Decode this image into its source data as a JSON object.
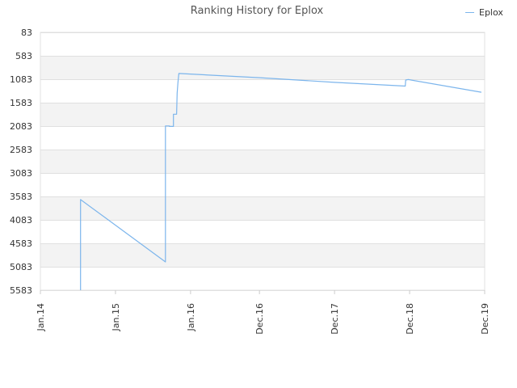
{
  "chart_data": {
    "type": "line",
    "title": "Ranking History for Eplox",
    "xlabel": "",
    "ylabel": "",
    "y_inverted": true,
    "ylim": [
      5583,
      83
    ],
    "yticks": [
      83,
      583,
      1083,
      1583,
      2083,
      2583,
      3083,
      3583,
      4083,
      4583,
      5083,
      5583
    ],
    "xlim": [
      "2014-01",
      "2019-12"
    ],
    "xticks": [
      {
        "label": "Jan.14",
        "date": "2014-01"
      },
      {
        "label": "Jan.15",
        "date": "2015-01"
      },
      {
        "label": "Jan.16",
        "date": "2016-01"
      },
      {
        "label": "Dec.16",
        "date": "2016-12"
      },
      {
        "label": "Dec.17",
        "date": "2017-12"
      },
      {
        "label": "Dec.18",
        "date": "2018-12"
      },
      {
        "label": "Dec.19",
        "date": "2019-12"
      }
    ],
    "grid": true,
    "legend": "top-right",
    "series": [
      {
        "name": "Eplox",
        "color": "#7cb5ec",
        "points": [
          {
            "date": "2014-07-15",
            "y": 5583
          },
          {
            "date": "2014-07-15",
            "y": 3650
          },
          {
            "date": "2015-09-01",
            "y": 4980
          },
          {
            "date": "2015-09-01",
            "y": 2080
          },
          {
            "date": "2015-09-20",
            "y": 2080
          },
          {
            "date": "2015-09-20",
            "y": 2090
          },
          {
            "date": "2015-10-10",
            "y": 2090
          },
          {
            "date": "2015-10-10",
            "y": 1830
          },
          {
            "date": "2015-10-25",
            "y": 1830
          },
          {
            "date": "2015-10-28",
            "y": 1380
          },
          {
            "date": "2015-11-01",
            "y": 1150
          },
          {
            "date": "2015-11-05",
            "y": 960
          },
          {
            "date": "2016-12-01",
            "y": 1050
          },
          {
            "date": "2017-12-01",
            "y": 1150
          },
          {
            "date": "2018-11-10",
            "y": 1230
          },
          {
            "date": "2018-11-12",
            "y": 1100
          },
          {
            "date": "2018-11-25",
            "y": 1090
          },
          {
            "date": "2019-11-15",
            "y": 1360
          }
        ]
      }
    ]
  }
}
